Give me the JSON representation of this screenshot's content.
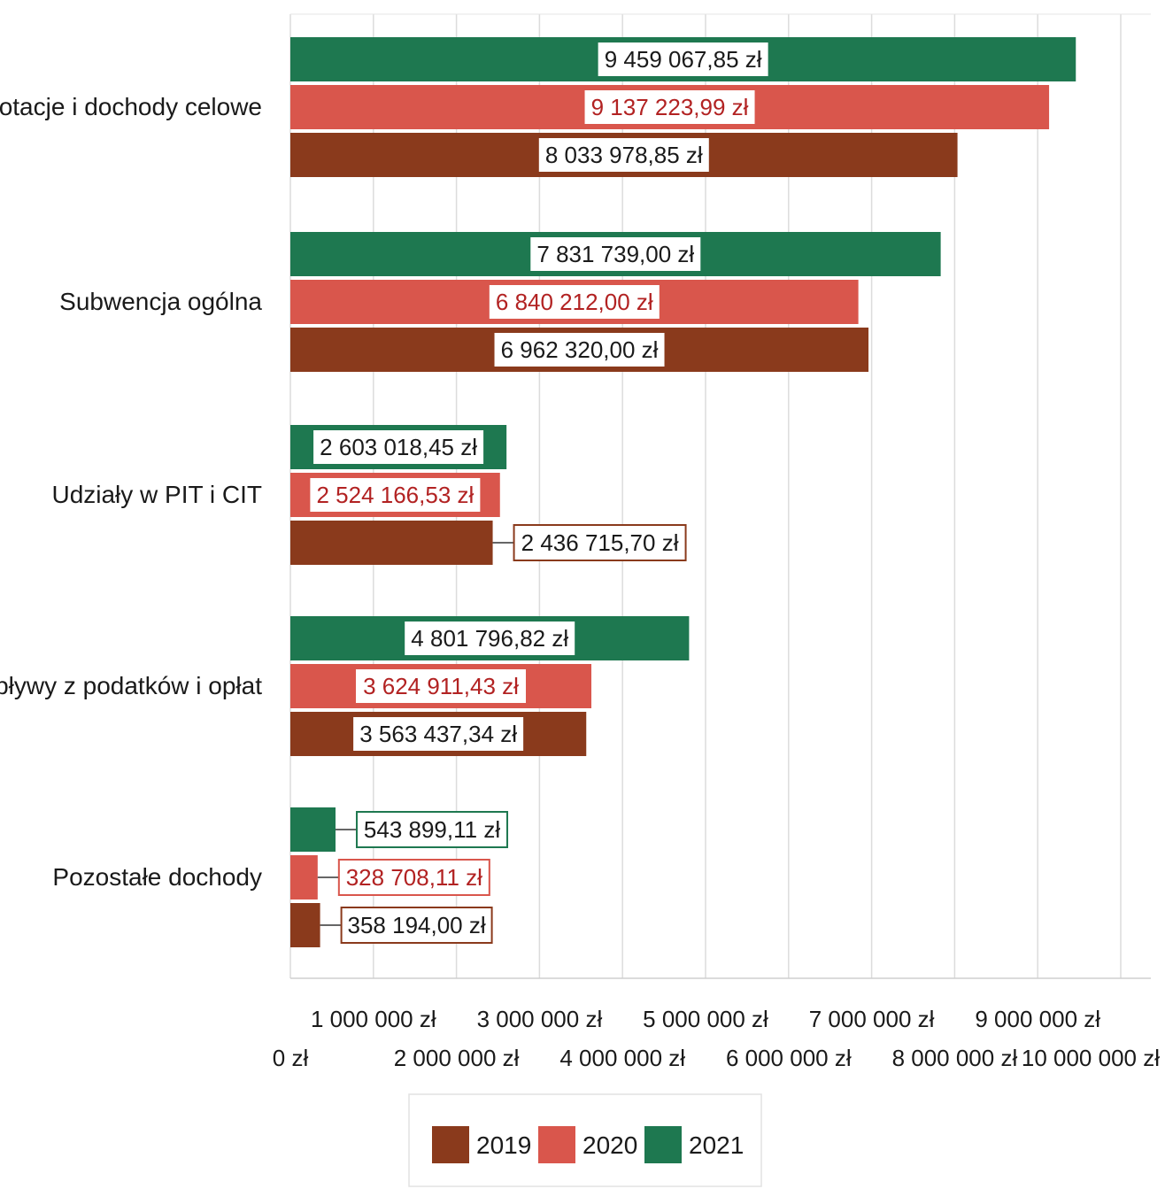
{
  "chart_data": {
    "type": "bar",
    "orientation": "horizontal",
    "categories": [
      "Dotacje i dochody celowe",
      "Subwencja ogólna",
      "Udziały w PIT i CIT",
      "Wpływy z podatków i opłat",
      "Pozostałe dochody"
    ],
    "series": [
      {
        "name": "2021",
        "color": "#1e7850",
        "label_color": "#1a1a1a",
        "values": [
          9459067.85,
          7831739.0,
          2603018.45,
          4801796.82,
          543899.11
        ],
        "labels": [
          "9 459 067,85 zł",
          "7 831 739,00 zł",
          "2 603 018,45 zł",
          "4 801 796,82 zł",
          "543 899,11 zł"
        ]
      },
      {
        "name": "2020",
        "color": "#d9564c",
        "label_color": "#b22222",
        "values": [
          9137223.99,
          6840212.0,
          2524166.53,
          3624911.43,
          328708.11
        ],
        "labels": [
          "9 137 223,99 zł",
          "6 840 212,00 zł",
          "2 524 166,53 zł",
          "3 624 911,43 zł",
          "328 708,11 zł"
        ]
      },
      {
        "name": "2019",
        "color": "#8a3a1c",
        "label_color": "#1a1a1a",
        "values": [
          8033978.85,
          6962320.0,
          2436715.7,
          3563437.34,
          358194.0
        ],
        "labels": [
          "8 033 978,85 zł",
          "6 962 320,00 zł",
          "2 436 715,70 zł",
          "3 563 437,34 zł",
          "358 194,00 zł"
        ]
      }
    ],
    "xlim": [
      0,
      10000000
    ],
    "x_ticks": [
      0,
      1000000,
      2000000,
      3000000,
      4000000,
      5000000,
      6000000,
      7000000,
      8000000,
      9000000,
      10000000
    ],
    "x_tick_labels": [
      "0 zł",
      "1 000 000 zł",
      "2 000 000 zł",
      "3 000 000 zł",
      "4 000 000 zł",
      "5 000 000 zł",
      "6 000 000 zł",
      "7 000 000 zł",
      "8 000 000 zł",
      "9 000 000 zł",
      "10 000 000 zł"
    ],
    "grid": true,
    "legend": {
      "position": "bottom",
      "items": [
        {
          "name": "2019",
          "color": "#8a3a1c"
        },
        {
          "name": "2020",
          "color": "#d9564c"
        },
        {
          "name": "2021",
          "color": "#1e7850"
        }
      ]
    }
  }
}
